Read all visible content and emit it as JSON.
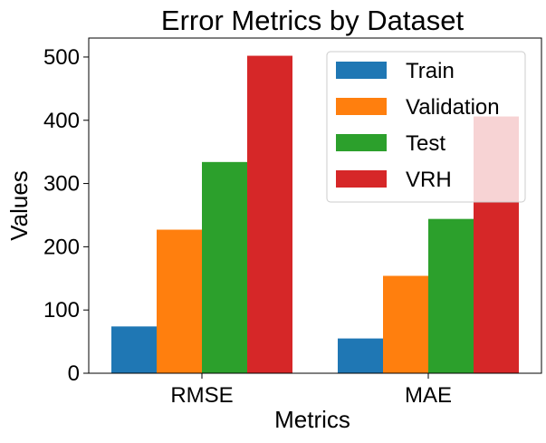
{
  "chart_data": {
    "type": "bar",
    "title": "Error Metrics by Dataset",
    "xlabel": "Metrics",
    "ylabel": "Values",
    "categories": [
      "RMSE",
      "MAE"
    ],
    "series": [
      {
        "name": "Train",
        "values": [
          74,
          55
        ],
        "color": "#1f77b4"
      },
      {
        "name": "Validation",
        "values": [
          227,
          154
        ],
        "color": "#ff7f0e"
      },
      {
        "name": "Test",
        "values": [
          334,
          244
        ],
        "color": "#2ca02c"
      },
      {
        "name": "VRH",
        "values": [
          502,
          406
        ],
        "color": "#d62728"
      }
    ],
    "ylim": [
      0,
      530
    ],
    "yticks": [
      0,
      100,
      200,
      300,
      400,
      500
    ],
    "grid": false,
    "legend": "top-right"
  }
}
